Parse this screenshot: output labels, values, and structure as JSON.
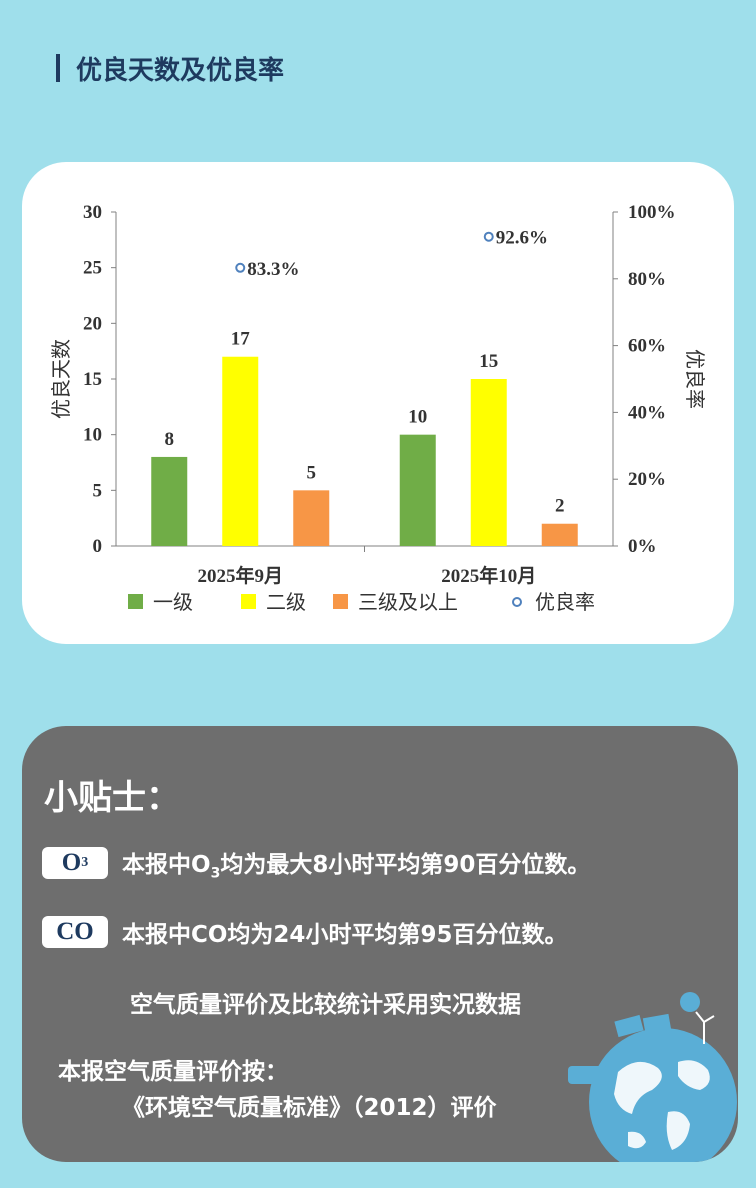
{
  "header": {
    "title": "优良天数及优良率"
  },
  "chart_data": {
    "type": "bar",
    "categories": [
      "2025年9月",
      "2025年10月"
    ],
    "series": [
      {
        "name": "一级",
        "color": "#70ad47",
        "values": [
          8,
          10
        ]
      },
      {
        "name": "二级",
        "color": "#ffff00",
        "values": [
          17,
          15
        ]
      },
      {
        "name": "三级及以上",
        "color": "#f79646",
        "values": [
          5,
          2
        ]
      }
    ],
    "rate_series": {
      "name": "优良率",
      "values": [
        83.3,
        92.6
      ],
      "labels": [
        "83.3%",
        "92.6%"
      ],
      "color": "#4f81bd"
    },
    "ylabel": "优良天数",
    "y2label": "优良率",
    "ylim": [
      0,
      30
    ],
    "yticks": [
      "0",
      "5",
      "10",
      "15",
      "20",
      "25",
      "30"
    ],
    "y2lim": [
      0,
      100
    ],
    "y2ticks": [
      "0%",
      "20%",
      "40%",
      "60%",
      "80%",
      "100%"
    ],
    "legend_position": "bottom"
  },
  "tips": {
    "title": "小贴士：",
    "o3": {
      "badge": "O",
      "badge_sub": "3",
      "prefix": "本报中O",
      "sub": "3",
      "suffix": "均为最大8小时平均第90百分位数。"
    },
    "co": {
      "badge": "CO",
      "text": "本报中CO均为24小时平均第95百分位数。"
    },
    "line1": "空气质量评价及比较统计采用实况数据",
    "line2": "本报空气质量评价按：",
    "line3": "《环境空气质量标准》（2012）评价"
  }
}
